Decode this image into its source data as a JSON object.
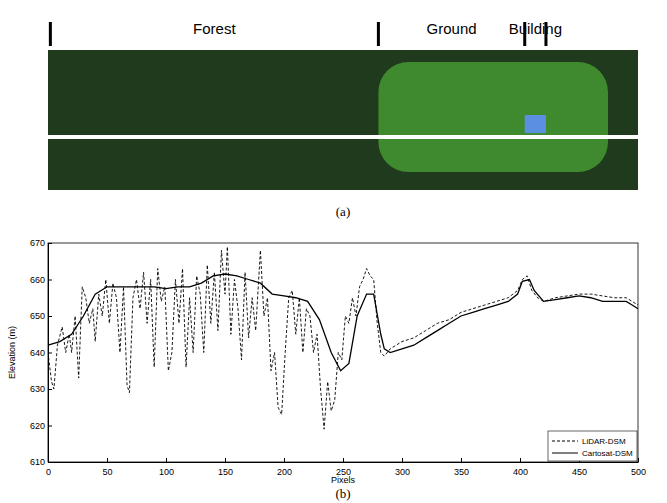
{
  "chart_data": {
    "type": "line",
    "panel_labels": [
      "(a)",
      "(b)"
    ],
    "regions": [
      {
        "label": "Forest",
        "start": 2,
        "end": 280
      },
      {
        "label": "Ground",
        "start": 280,
        "end": 404
      },
      {
        "label": "Building",
        "start": 404,
        "end": 422
      }
    ],
    "x_label": "Pixels",
    "y_label": "Elevation (m)",
    "xlim": [
      0,
      500
    ],
    "ylim": [
      610,
      670
    ],
    "xticks": [
      0,
      50,
      100,
      150,
      200,
      250,
      300,
      350,
      400,
      450,
      500
    ],
    "yticks": [
      610,
      620,
      630,
      640,
      650,
      660,
      670
    ],
    "grid": false,
    "legend": "lower right",
    "series": [
      {
        "name": "LiDAR-DSM",
        "color": "#000000",
        "line_style": "dashed",
        "x": [
          0,
          3,
          5,
          8,
          12,
          15,
          18,
          20,
          23,
          26,
          29,
          32,
          35,
          38,
          40,
          43,
          46,
          49,
          52,
          55,
          58,
          61,
          64,
          67,
          69,
          72,
          75,
          78,
          81,
          84,
          87,
          90,
          93,
          96,
          99,
          102,
          105,
          108,
          111,
          114,
          117,
          120,
          123,
          126,
          129,
          132,
          135,
          138,
          141,
          144,
          147,
          150,
          152,
          155,
          158,
          161,
          164,
          167,
          170,
          173,
          176,
          180,
          183,
          186,
          189,
          192,
          195,
          198,
          201,
          204,
          207,
          210,
          213,
          216,
          219,
          222,
          225,
          228,
          231,
          234,
          237,
          240,
          243,
          246,
          249,
          252,
          255,
          258,
          261,
          264,
          267,
          270,
          273,
          276,
          279,
          282,
          285,
          290,
          300,
          310,
          320,
          330,
          340,
          350,
          360,
          370,
          380,
          390,
          398,
          402,
          406,
          410,
          415,
          420,
          430,
          440,
          450,
          460,
          470,
          480,
          490,
          495,
          500
        ],
        "values": [
          640,
          632,
          630,
          642,
          647,
          640,
          645,
          640,
          650,
          633,
          658,
          655,
          648,
          652,
          643,
          656,
          650,
          660,
          648,
          659,
          655,
          640,
          658,
          631,
          629,
          655,
          660,
          652,
          662,
          648,
          660,
          636,
          663,
          654,
          658,
          635,
          640,
          660,
          648,
          663,
          636,
          655,
          640,
          661,
          656,
          640,
          664,
          648,
          662,
          646,
          668,
          656,
          669,
          645,
          660,
          652,
          638,
          662,
          644,
          655,
          646,
          668,
          650,
          655,
          635,
          640,
          625,
          623,
          640,
          655,
          657,
          645,
          655,
          640,
          652,
          650,
          640,
          645,
          630,
          619,
          632,
          624,
          627,
          640,
          638,
          650,
          648,
          655,
          650,
          658,
          660,
          663,
          661,
          660,
          648,
          640,
          639,
          641,
          643,
          644,
          646,
          648,
          649,
          651,
          652,
          653,
          654,
          655,
          657,
          660,
          661,
          657,
          655,
          654,
          655,
          655.5,
          656,
          656,
          655.5,
          655,
          655,
          654,
          653
        ]
      },
      {
        "name": "Cartosat-DSM",
        "color": "#000000",
        "line_style": "solid",
        "x": [
          0,
          10,
          20,
          30,
          40,
          50,
          60,
          70,
          80,
          90,
          100,
          110,
          120,
          130,
          140,
          150,
          160,
          170,
          180,
          190,
          200,
          210,
          220,
          230,
          240,
          248,
          255,
          262,
          270,
          276,
          282,
          285,
          290,
          300,
          310,
          320,
          330,
          340,
          350,
          360,
          370,
          380,
          390,
          398,
          402,
          408,
          412,
          420,
          430,
          440,
          450,
          460,
          470,
          480,
          490,
          495,
          500
        ],
        "values": [
          642,
          643,
          645,
          650,
          656,
          658,
          658,
          658,
          658,
          658,
          657.5,
          658,
          658,
          659,
          661,
          661.5,
          661,
          660,
          659,
          656,
          655.5,
          655,
          654,
          649,
          640,
          635,
          637,
          650,
          656,
          656,
          645,
          641,
          640,
          641,
          642,
          644,
          646,
          648,
          650,
          651,
          652,
          653,
          654,
          656,
          659.5,
          660,
          657,
          654,
          654.5,
          655,
          655.5,
          655,
          654,
          654,
          654,
          653,
          652
        ]
      }
    ]
  }
}
